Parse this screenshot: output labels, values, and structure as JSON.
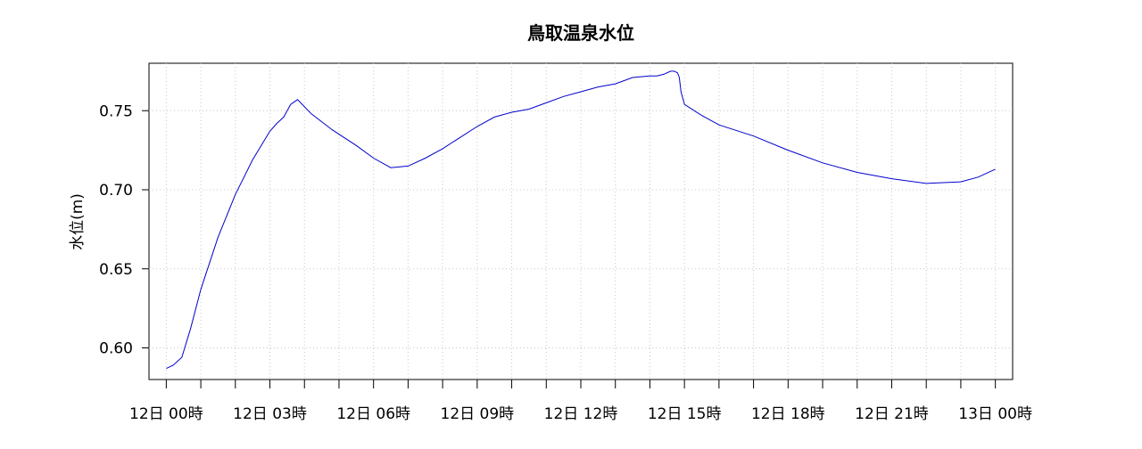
{
  "chart_data": {
    "type": "line",
    "title": "鳥取温泉水位",
    "xlabel": "",
    "ylabel": "水位(m)",
    "ylim": [
      0.58,
      0.78
    ],
    "y_ticks": [
      0.6,
      0.65,
      0.7,
      0.75
    ],
    "y_tick_labels": [
      "0.60",
      "0.65",
      "0.70",
      "0.75"
    ],
    "xlim": [
      -0.5,
      24.5
    ],
    "x_ticks_major": [
      0,
      3,
      6,
      9,
      12,
      15,
      18,
      21,
      24
    ],
    "x_ticks_minor": [
      1,
      2,
      4,
      5,
      7,
      8,
      10,
      11,
      13,
      14,
      16,
      17,
      19,
      20,
      22,
      23
    ],
    "x_tick_labels": [
      "12日 00時",
      "12日 03時",
      "12日 06時",
      "12日 09時",
      "12日 12時",
      "12日 15時",
      "12日 18時",
      "12日 21時",
      "13日 00時"
    ],
    "grid": true,
    "line_color": "#0000cc",
    "series": [
      {
        "x": [
          0.0,
          0.2,
          0.45,
          0.7,
          1.0,
          1.5,
          2.0,
          2.5,
          3.0,
          3.2,
          3.4,
          3.5,
          3.6,
          3.8,
          4.2,
          4.8,
          5.5,
          6.0,
          6.5,
          7.0,
          7.5,
          8.0,
          8.5,
          9.0,
          9.5,
          10.0,
          10.5,
          11.0,
          11.5,
          12.0,
          12.5,
          13.0,
          13.5,
          14.0,
          14.2,
          14.4,
          14.6,
          14.7,
          14.8,
          14.85,
          14.9,
          15.0,
          15.5,
          16.0,
          17.0,
          18.0,
          19.0,
          20.0,
          21.0,
          22.0,
          23.0,
          23.5,
          24.0
        ],
        "y": [
          0.587,
          0.589,
          0.594,
          0.612,
          0.637,
          0.67,
          0.697,
          0.719,
          0.737,
          0.742,
          0.746,
          0.75,
          0.754,
          0.757,
          0.748,
          0.738,
          0.728,
          0.72,
          0.714,
          0.715,
          0.72,
          0.726,
          0.733,
          0.74,
          0.746,
          0.749,
          0.751,
          0.755,
          0.759,
          0.762,
          0.765,
          0.767,
          0.771,
          0.772,
          0.772,
          0.773,
          0.775,
          0.775,
          0.774,
          0.771,
          0.762,
          0.754,
          0.747,
          0.741,
          0.734,
          0.725,
          0.717,
          0.711,
          0.707,
          0.704,
          0.705,
          0.708,
          0.713
        ]
      }
    ]
  }
}
